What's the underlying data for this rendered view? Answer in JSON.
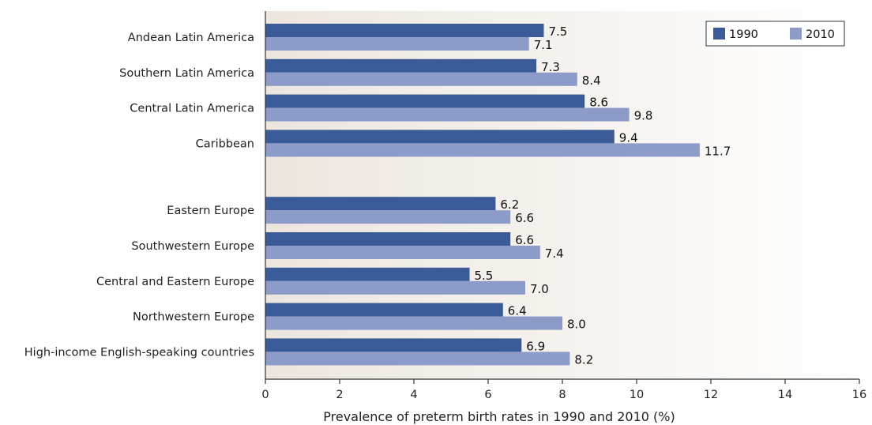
{
  "chart_data": {
    "type": "bar",
    "orientation": "horizontal",
    "categories": [
      "Andean Latin America",
      "Southern Latin America",
      "Central Latin America",
      "Caribbean",
      "Eastern Europe",
      "Southwestern Europe",
      "Central and Eastern Europe",
      "Northwestern Europe",
      "High-income English-speaking countries"
    ],
    "groups": [
      [
        0,
        1,
        2,
        3
      ],
      [
        4,
        5,
        6,
        7,
        8
      ]
    ],
    "series": [
      {
        "name": "1990",
        "color": "#3a5a98",
        "values": [
          7.5,
          7.3,
          8.6,
          9.4,
          6.2,
          6.6,
          5.5,
          6.4,
          6.9
        ],
        "labels": [
          "7.5",
          "7.3",
          "8.6",
          "9.4",
          "6.2",
          "6.6",
          "5.5",
          "6.4",
          "6.9"
        ]
      },
      {
        "name": "2010",
        "color": "#8d9bc8",
        "values": [
          7.1,
          8.4,
          9.8,
          11.7,
          6.6,
          7.4,
          7.0,
          8.0,
          8.2
        ],
        "labels": [
          "7.1",
          "8.4",
          "9.8",
          "11.7",
          "6.6",
          "7.4",
          "7.0",
          "8.0",
          "8.2"
        ]
      }
    ],
    "xlim": [
      0,
      16
    ],
    "xticks": [
      0,
      2,
      4,
      6,
      8,
      10,
      12,
      14,
      16
    ],
    "xlabel": "Prevalence of preterm birth rates in 1990 and 2010 (%)",
    "ylabel": "",
    "title": "",
    "grid": false,
    "legend_position": "top-right",
    "background_gradient": [
      "#ece6de",
      "#ffffff"
    ]
  }
}
